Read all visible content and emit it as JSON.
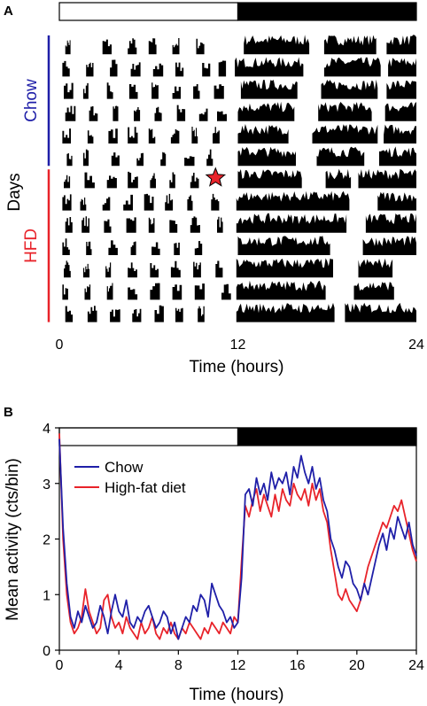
{
  "figure": {
    "panel_a_letter": "A",
    "panel_b_letter": "B"
  },
  "colors": {
    "chow": "#1f1fa8",
    "hfd": "#e8232a",
    "light_phase": "#ffffff",
    "dark_phase": "#000000",
    "marker": "#e8232a"
  },
  "chart_data": [
    {
      "type": "actogram",
      "xlabel": "Time (hours)",
      "ylabel": "Days",
      "x_ticks": [
        "0",
        "12",
        "24"
      ],
      "xlim": [
        0,
        24
      ],
      "light_dark_bar": {
        "light": [
          0,
          12
        ],
        "dark": [
          12,
          24
        ]
      },
      "group_labels": [
        {
          "name": "Chow",
          "color": "#1f1fa8",
          "days": [
            1,
            6
          ]
        },
        {
          "name": "HFD",
          "color": "#e8232a",
          "days": [
            7,
            13
          ]
        }
      ],
      "num_days": 13,
      "diet_switch_marker": {
        "symbol": "star",
        "day": 7,
        "hour": 10.5
      },
      "days": [
        {
          "day": 1,
          "light_bouts": [
            0.4,
            2.9,
            4.6,
            6.0,
            7.6,
            9.2
          ],
          "dark_active": [
            [
              12.4,
              16.8
            ],
            [
              17.8,
              21.3
            ],
            [
              22.0,
              24.0
            ]
          ]
        },
        {
          "day": 2,
          "light_bouts": [
            0.2,
            1.8,
            3.4,
            4.8,
            6.3,
            7.8,
            9.6,
            10.7
          ],
          "dark_active": [
            [
              11.8,
              16.4
            ],
            [
              17.8,
              21.6
            ],
            [
              22.1,
              24.0
            ]
          ]
        },
        {
          "day": 3,
          "light_bouts": [
            0.3,
            1.6,
            3.2,
            4.7,
            6.2,
            7.6,
            9.0,
            10.4
          ],
          "dark_active": [
            [
              12.2,
              16.0
            ],
            [
              17.6,
              21.4
            ],
            [
              22.0,
              24.0
            ]
          ]
        },
        {
          "day": 4,
          "light_bouts": [
            0.4,
            2.0,
            3.6,
            5.0,
            6.4,
            7.9,
            9.4,
            10.6
          ],
          "dark_active": [
            [
              12.0,
              15.8
            ],
            [
              17.4,
              21.0
            ],
            [
              21.9,
              24.0
            ]
          ]
        },
        {
          "day": 5,
          "light_bouts": [
            0.2,
            1.9,
            3.3,
            4.6,
            6.0,
            7.5,
            8.9,
            10.3
          ],
          "dark_active": [
            [
              12.0,
              15.4
            ],
            [
              17.0,
              21.4
            ],
            [
              21.8,
              24.0
            ]
          ]
        },
        {
          "day": 6,
          "light_bouts": [
            0.5,
            1.6,
            3.5,
            5.2,
            6.8,
            8.4,
            9.9
          ],
          "dark_active": [
            [
              12.0,
              15.9
            ],
            [
              17.3,
              20.5
            ],
            [
              21.5,
              24.0
            ]
          ]
        },
        {
          "day": 7,
          "light_bouts": [
            0.3,
            1.7,
            3.2,
            4.6,
            6.1,
            7.4,
            8.8
          ],
          "dark_active": [
            [
              12.0,
              16.3
            ],
            [
              17.9,
              19.6
            ],
            [
              20.1,
              24.0
            ]
          ]
        },
        {
          "day": 8,
          "light_bouts": [
            0.2,
            1.4,
            2.9,
            4.3,
            5.7,
            7.1,
            8.6,
            10.2
          ],
          "dark_active": [
            [
              11.9,
              19.5
            ],
            [
              21.4,
              24.0
            ]
          ]
        },
        {
          "day": 9,
          "light_bouts": [
            0.4,
            1.5,
            3.0,
            4.5,
            6.0,
            7.4,
            8.8,
            10.6
          ],
          "dark_active": [
            [
              11.9,
              19.3
            ],
            [
              20.6,
              24.0
            ]
          ]
        },
        {
          "day": 10,
          "light_bouts": [
            0.2,
            1.8,
            3.3,
            4.8,
            6.2,
            7.7,
            9.1
          ],
          "dark_active": [
            [
              12.0,
              18.2
            ],
            [
              20.4,
              24.0
            ]
          ]
        },
        {
          "day": 11,
          "light_bouts": [
            0.3,
            1.6,
            3.1,
            4.6,
            6.1,
            7.5,
            9.0,
            10.5
          ],
          "dark_active": [
            [
              11.9,
              18.4
            ],
            [
              20.1,
              22.4
            ]
          ]
        },
        {
          "day": 12,
          "light_bouts": [
            0.2,
            1.7,
            3.2,
            4.6,
            6.1,
            7.6,
            9.1,
            10.9
          ],
          "dark_active": [
            [
              11.9,
              17.9
            ],
            [
              19.8,
              22.5
            ]
          ]
        },
        {
          "day": 13,
          "light_bouts": [
            0.4,
            1.9,
            3.4,
            4.9,
            6.4,
            7.8,
            9.3
          ],
          "dark_active": [
            [
              11.9,
              18.5
            ],
            [
              19.2,
              24.0
            ]
          ]
        }
      ]
    },
    {
      "type": "line",
      "xlabel": "Time (hours)",
      "ylabel": "Mean activity (cts/bin)",
      "xlim": [
        0,
        24
      ],
      "ylim": [
        0,
        4
      ],
      "x_ticks": [
        0,
        4,
        8,
        12,
        16,
        20,
        24
      ],
      "y_ticks": [
        0,
        1,
        2,
        3,
        4
      ],
      "light_dark_bar": {
        "light": [
          0,
          12
        ],
        "dark": [
          12,
          24
        ]
      },
      "legend_position": "top-left",
      "x": [
        0,
        0.25,
        0.5,
        0.75,
        1,
        1.25,
        1.5,
        1.75,
        2,
        2.25,
        2.5,
        2.75,
        3,
        3.25,
        3.5,
        3.75,
        4,
        4.25,
        4.5,
        4.75,
        5,
        5.25,
        5.5,
        5.75,
        6,
        6.25,
        6.5,
        6.75,
        7,
        7.25,
        7.5,
        7.75,
        8,
        8.25,
        8.5,
        8.75,
        9,
        9.25,
        9.5,
        9.75,
        10,
        10.25,
        10.5,
        10.75,
        11,
        11.25,
        11.5,
        11.75,
        12,
        12.25,
        12.5,
        12.75,
        13,
        13.25,
        13.5,
        13.75,
        14,
        14.25,
        14.5,
        14.75,
        15,
        15.25,
        15.5,
        15.75,
        16,
        16.25,
        16.5,
        16.75,
        17,
        17.25,
        17.5,
        17.75,
        18,
        18.25,
        18.5,
        18.75,
        19,
        19.25,
        19.5,
        19.75,
        20,
        20.25,
        20.5,
        20.75,
        21,
        21.25,
        21.5,
        21.75,
        22,
        22.25,
        22.5,
        22.75,
        23,
        23.25,
        23.5,
        23.75,
        24
      ],
      "series": [
        {
          "name": "Chow",
          "color": "#1f1fa8",
          "values": [
            3.8,
            2.2,
            1.2,
            0.6,
            0.4,
            0.7,
            0.5,
            0.8,
            0.6,
            0.4,
            0.5,
            0.8,
            0.6,
            0.3,
            0.7,
            1.0,
            0.7,
            0.6,
            0.9,
            0.5,
            0.4,
            0.6,
            0.5,
            0.7,
            0.8,
            0.6,
            0.4,
            0.5,
            0.7,
            0.6,
            0.3,
            0.5,
            0.2,
            0.4,
            0.6,
            0.5,
            0.8,
            0.7,
            1.0,
            0.9,
            0.6,
            1.2,
            1.0,
            0.8,
            0.7,
            0.5,
            0.6,
            0.4,
            0.5,
            1.3,
            2.8,
            2.9,
            2.6,
            3.1,
            2.8,
            3.0,
            2.7,
            3.2,
            2.9,
            3.1,
            3.0,
            3.2,
            2.8,
            3.3,
            3.1,
            3.5,
            3.2,
            3.0,
            3.3,
            2.9,
            3.1,
            2.7,
            2.5,
            2.0,
            1.8,
            1.5,
            1.3,
            1.6,
            1.5,
            1.2,
            1.1,
            0.9,
            1.2,
            1.0,
            1.3,
            1.6,
            1.9,
            2.1,
            1.8,
            2.2,
            2.0,
            2.4,
            2.2,
            2.0,
            2.3,
            1.9,
            1.7
          ]
        },
        {
          "name": "High-fat diet",
          "color": "#e8232a",
          "values": [
            3.9,
            2.0,
            1.0,
            0.5,
            0.3,
            0.4,
            0.6,
            1.1,
            0.7,
            0.5,
            0.3,
            0.4,
            0.9,
            1.0,
            0.6,
            0.4,
            0.5,
            0.3,
            0.6,
            0.4,
            0.3,
            0.2,
            0.5,
            0.3,
            0.4,
            0.6,
            0.3,
            0.2,
            0.4,
            0.3,
            0.5,
            0.3,
            0.2,
            0.4,
            0.3,
            0.5,
            0.4,
            0.3,
            0.2,
            0.4,
            0.3,
            0.5,
            0.4,
            0.3,
            0.5,
            0.4,
            0.3,
            0.6,
            0.5,
            1.6,
            2.6,
            2.4,
            2.7,
            2.9,
            2.5,
            2.8,
            2.6,
            2.4,
            2.8,
            2.5,
            2.9,
            2.7,
            2.6,
            3.0,
            2.8,
            2.7,
            2.9,
            2.6,
            3.0,
            2.7,
            2.9,
            2.5,
            2.3,
            1.8,
            1.4,
            1.0,
            0.9,
            1.1,
            0.9,
            0.8,
            0.7,
            0.9,
            1.2,
            1.5,
            1.7,
            1.9,
            2.1,
            2.3,
            2.2,
            2.4,
            2.6,
            2.5,
            2.7,
            2.4,
            2.1,
            1.8,
            1.6
          ]
        }
      ]
    }
  ]
}
